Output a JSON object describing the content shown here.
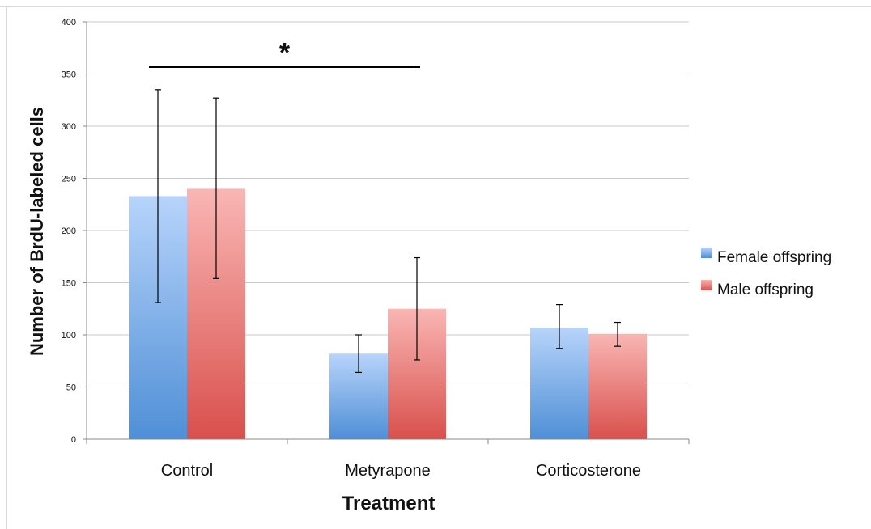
{
  "chart_data": {
    "type": "bar",
    "title": "",
    "xlabel": "Treatment",
    "ylabel": "Number of BrdU-labeled cells",
    "categories": [
      "Control",
      "Metyrapone",
      "Corticosterone"
    ],
    "series": [
      {
        "name": "Female offspring",
        "values": [
          233,
          82,
          107
        ],
        "error_low": [
          131,
          64,
          87
        ],
        "error_high": [
          335,
          100,
          129
        ]
      },
      {
        "name": "Male offspring",
        "values": [
          240,
          125,
          101
        ],
        "error_low": [
          154,
          76,
          89
        ],
        "error_high": [
          327,
          174,
          112
        ]
      }
    ],
    "ylim": [
      0,
      400
    ],
    "yticks": [
      "0",
      "50",
      "100",
      "150",
      "200",
      "250",
      "300",
      "350",
      "400"
    ],
    "grid": true,
    "legend": "right",
    "annotation": {
      "text": "*",
      "from_category": "Control",
      "to_category": "Metyrapone",
      "level": 357
    },
    "colors": {
      "female_top": "#b7d4fb",
      "female_bottom": "#4f8fd6",
      "male_top": "#f9b6b4",
      "male_bottom": "#d9504c",
      "grid": "#c8c8c8",
      "axis": "#888888"
    }
  }
}
